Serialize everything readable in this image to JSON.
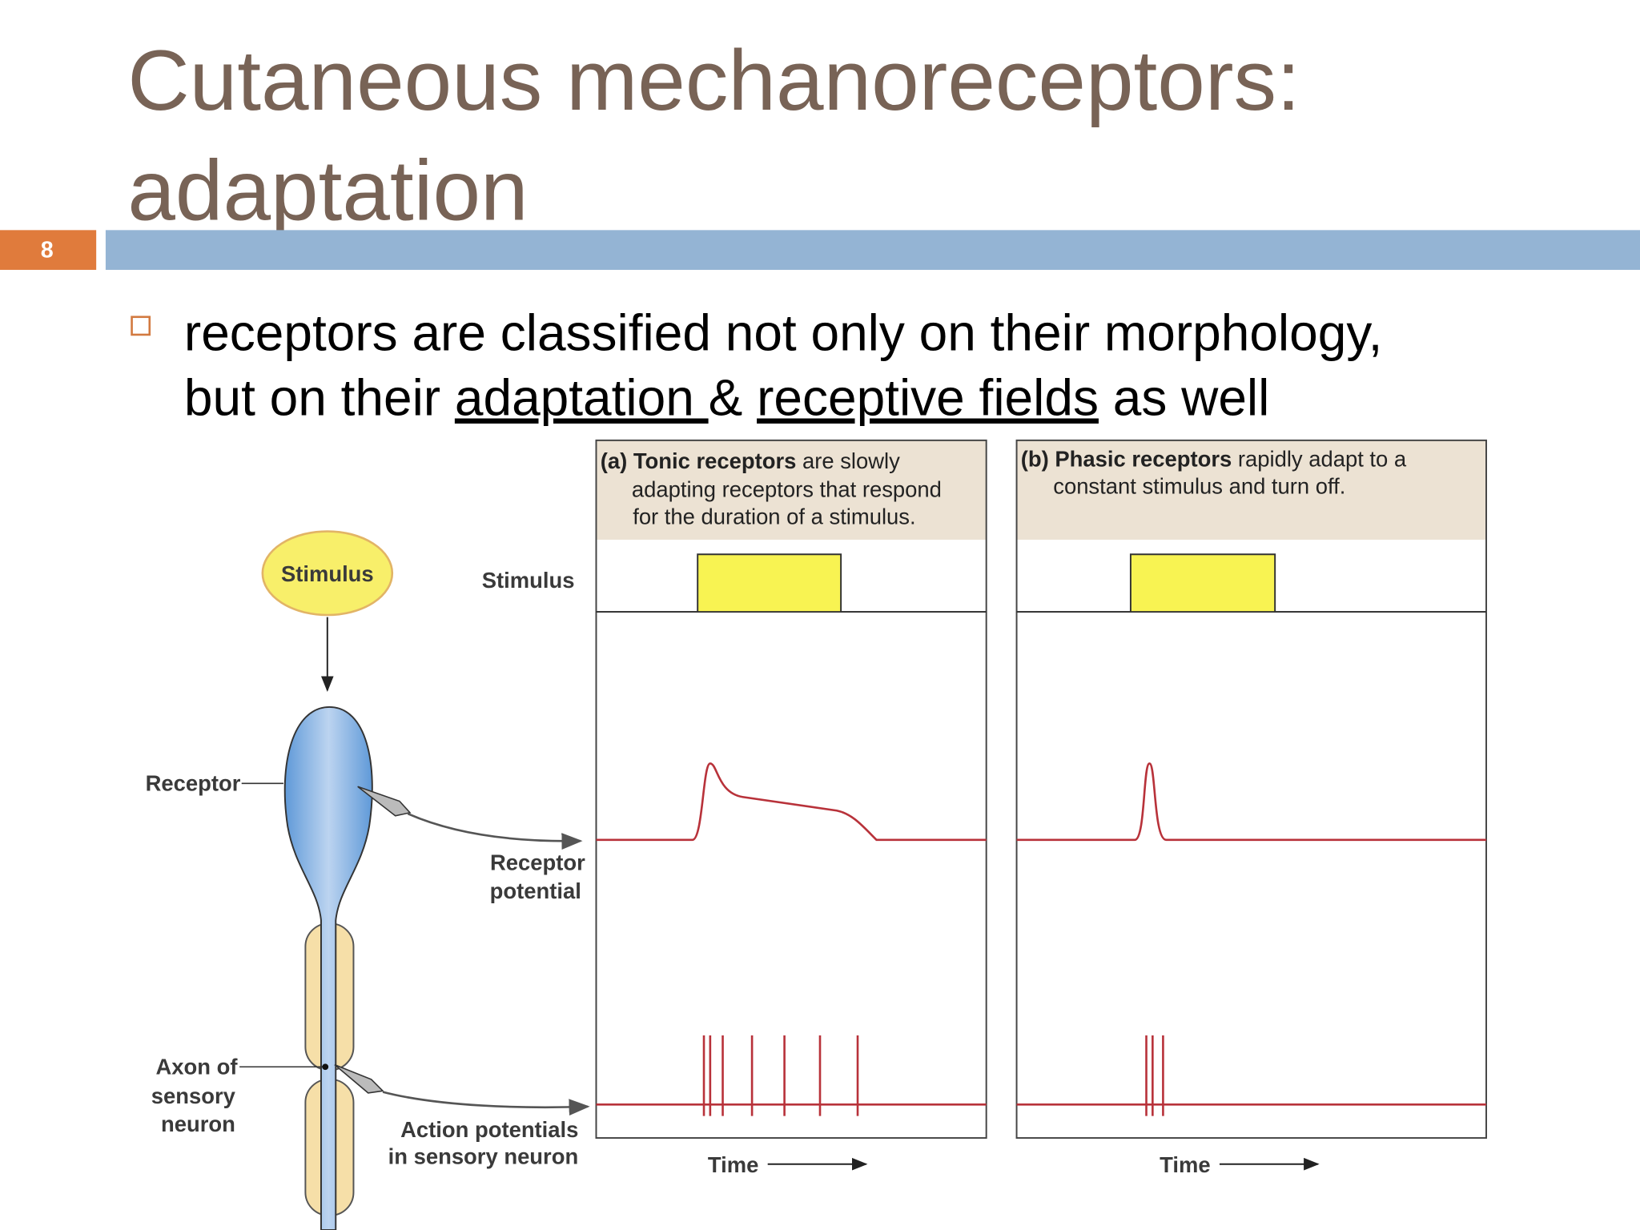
{
  "slide": {
    "number": "8",
    "title_lines": [
      "Cutaneous mechanoreceptors:",
      "adaptation"
    ]
  },
  "bullet": {
    "line1": "receptors are classified not only on their morphology,",
    "line2": {
      "lead": "but on their ",
      "term1": "adaptation ",
      "amp": "& ",
      "term2": "receptive fields",
      "tail": " as well"
    }
  },
  "figure": {
    "stimulus_oval": "Stimulus",
    "stimulus_row": "Stimulus",
    "receptor": "Receptor",
    "receptor_potential": [
      "Receptor",
      "potential"
    ],
    "axon": [
      "Axon of",
      "sensory",
      "neuron"
    ],
    "action_potentials": [
      "Action potentials",
      "in sensory neuron"
    ],
    "panel_a": {
      "bold": "(a) Tonic receptors",
      "lines": [
        " are slowly",
        "adapting receptors that respond",
        "for the duration of a stimulus."
      ],
      "time": "Time"
    },
    "panel_b": {
      "bold": "(b) Phasic receptors",
      "lines": [
        " rapidly adapt to a",
        "constant stimulus and turn off."
      ],
      "time": "Time"
    }
  }
}
